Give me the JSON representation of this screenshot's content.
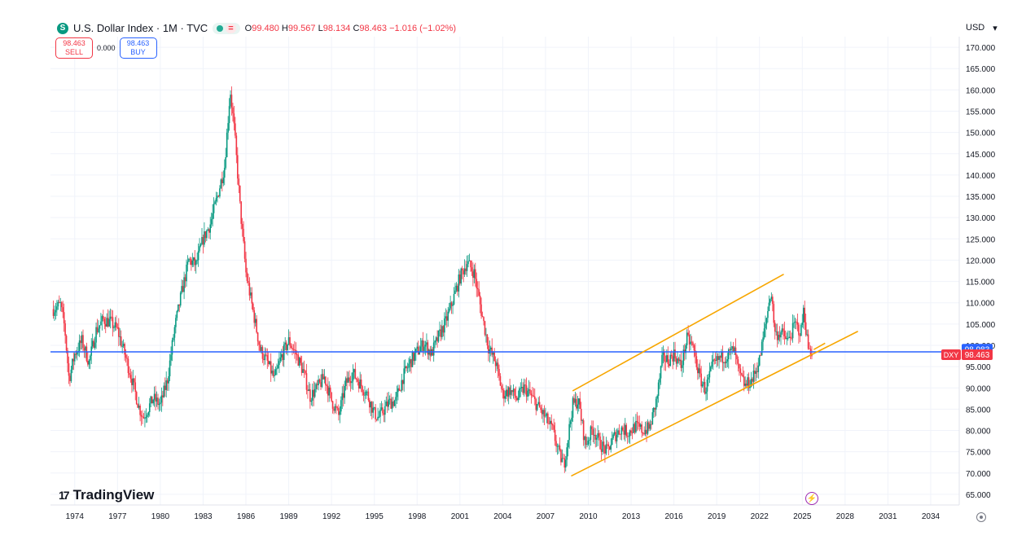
{
  "header": {
    "icon_letter": "S",
    "symbol_title": "U.S. Dollar Index · 1M · TVC",
    "market_status_icon": "dot-icon",
    "market_equal_label": "=",
    "ohlc": [
      {
        "label": "O",
        "value": "99.480"
      },
      {
        "label": "H",
        "value": "99.567"
      },
      {
        "label": "L",
        "value": "98.134"
      },
      {
        "label": "C",
        "value": "98.463"
      }
    ],
    "change": "−1.016 (−1.02%)"
  },
  "trade": {
    "sell_price": "98.463",
    "sell_label": "SELL",
    "spread": "0.000",
    "buy_price": "98.463",
    "buy_label": "BUY"
  },
  "currency": {
    "label": "USD",
    "dropdown_icon": "chevron-down-icon"
  },
  "branding": {
    "logo_mark": "17",
    "name": "TradingView"
  },
  "colors": {
    "up": "#089981",
    "down": "#f23645",
    "price_line": "#2962ff",
    "channel": "#f7a600",
    "grid": "#f0f3fa"
  },
  "chart_data": {
    "type": "candlestick",
    "title": "U.S. Dollar Index · 1M · TVC",
    "ylabel": "USD",
    "ylim": [
      62.5,
      172.5
    ],
    "xlim": [
      1972.3,
      2036.0
    ],
    "y_ticks": [
      "170.000",
      "165.000",
      "160.000",
      "155.000",
      "150.000",
      "145.000",
      "140.000",
      "135.000",
      "130.000",
      "125.000",
      "120.000",
      "115.000",
      "110.000",
      "105.000",
      "100.000",
      "95.000",
      "90.000",
      "85.000",
      "80.000",
      "75.000",
      "70.000",
      "65.000"
    ],
    "x_ticks": [
      "1974",
      "1977",
      "1980",
      "1983",
      "1986",
      "1989",
      "1992",
      "1995",
      "1998",
      "2001",
      "2004",
      "2007",
      "2010",
      "2013",
      "2016",
      "2019",
      "2022",
      "2025",
      "2028",
      "2031",
      "2034"
    ],
    "price_series": {
      "x": [
        1972.5,
        1973.0,
        1973.3,
        1973.6,
        1974.0,
        1974.5,
        1975.0,
        1975.5,
        1976.0,
        1976.5,
        1977.0,
        1977.5,
        1978.0,
        1978.5,
        1978.8,
        1979.5,
        1980.0,
        1980.5,
        1981.0,
        1981.5,
        1982.0,
        1982.5,
        1983.0,
        1983.5,
        1984.0,
        1984.5,
        1984.9,
        1985.2,
        1985.6,
        1986.0,
        1986.5,
        1987.0,
        1987.5,
        1988.0,
        1988.5,
        1989.0,
        1989.5,
        1990.0,
        1990.5,
        1991.0,
        1991.5,
        1992.0,
        1992.5,
        1993.0,
        1993.5,
        1994.0,
        1994.5,
        1995.0,
        1995.3,
        1996.0,
        1996.5,
        1997.0,
        1997.5,
        1998.0,
        1998.5,
        1999.0,
        1999.5,
        2000.0,
        2000.5,
        2001.0,
        2001.5,
        2002.0,
        2002.5,
        2003.0,
        2003.5,
        2004.0,
        2004.5,
        2005.0,
        2005.5,
        2006.0,
        2006.5,
        2007.0,
        2007.5,
        2008.0,
        2008.3,
        2008.9,
        2009.3,
        2009.8,
        2010.3,
        2010.8,
        2011.3,
        2011.8,
        2012.3,
        2012.8,
        2013.3,
        2013.8,
        2014.3,
        2014.8,
        2015.2,
        2015.6,
        2016.0,
        2016.5,
        2016.9,
        2017.3,
        2017.8,
        2018.2,
        2018.7,
        2019.2,
        2019.7,
        2020.2,
        2020.6,
        2021.0,
        2021.5,
        2022.0,
        2022.5,
        2022.8,
        2023.1,
        2023.5,
        2024.0,
        2024.5,
        2024.9,
        2025.1,
        2025.4,
        2025.7
      ],
      "values": [
        108.5,
        109.5,
        104.0,
        92.0,
        98.0,
        101.0,
        96.0,
        103.5,
        106.0,
        105.5,
        103.5,
        98.0,
        92.0,
        85.5,
        83.0,
        87.5,
        86.0,
        92.0,
        104.0,
        112.5,
        120.0,
        119.0,
        125.0,
        128.5,
        135.0,
        142.0,
        160.0,
        150.0,
        132.0,
        117.0,
        108.0,
        99.0,
        96.0,
        92.0,
        97.5,
        101.0,
        98.0,
        94.0,
        88.0,
        90.0,
        92.5,
        87.0,
        83.5,
        91.0,
        93.5,
        91.0,
        88.5,
        84.0,
        83.0,
        86.5,
        87.0,
        92.5,
        96.0,
        98.5,
        100.5,
        98.0,
        102.0,
        105.5,
        110.5,
        116.0,
        119.5,
        117.0,
        108.0,
        99.5,
        96.0,
        88.5,
        89.5,
        87.5,
        90.0,
        88.0,
        85.5,
        83.0,
        80.0,
        74.0,
        72.0,
        86.0,
        87.0,
        76.5,
        80.5,
        77.0,
        75.0,
        78.5,
        80.5,
        79.5,
        81.0,
        80.0,
        80.5,
        87.5,
        97.0,
        96.5,
        98.0,
        95.0,
        101.5,
        100.0,
        92.5,
        89.5,
        95.0,
        97.0,
        97.5,
        99.0,
        93.0,
        90.5,
        92.0,
        96.5,
        106.5,
        113.0,
        102.5,
        103.0,
        101.0,
        105.0,
        103.0,
        108.5,
        99.5,
        98.463
      ]
    },
    "price_line": {
      "value": 98.463,
      "label": "DXY",
      "value_label": "98.463"
    },
    "ref_label": {
      "value": 98.983,
      "value_label": "98.983"
    },
    "channel": {
      "upper": [
        [
          2008.9,
          89.3
        ],
        [
          2023.7,
          116.7
        ]
      ],
      "lower": [
        [
          2008.8,
          69.3
        ],
        [
          2028.9,
          103.3
        ]
      ],
      "short_line": [
        [
          2025.8,
          99.0
        ],
        [
          2026.6,
          100.5
        ]
      ]
    }
  }
}
